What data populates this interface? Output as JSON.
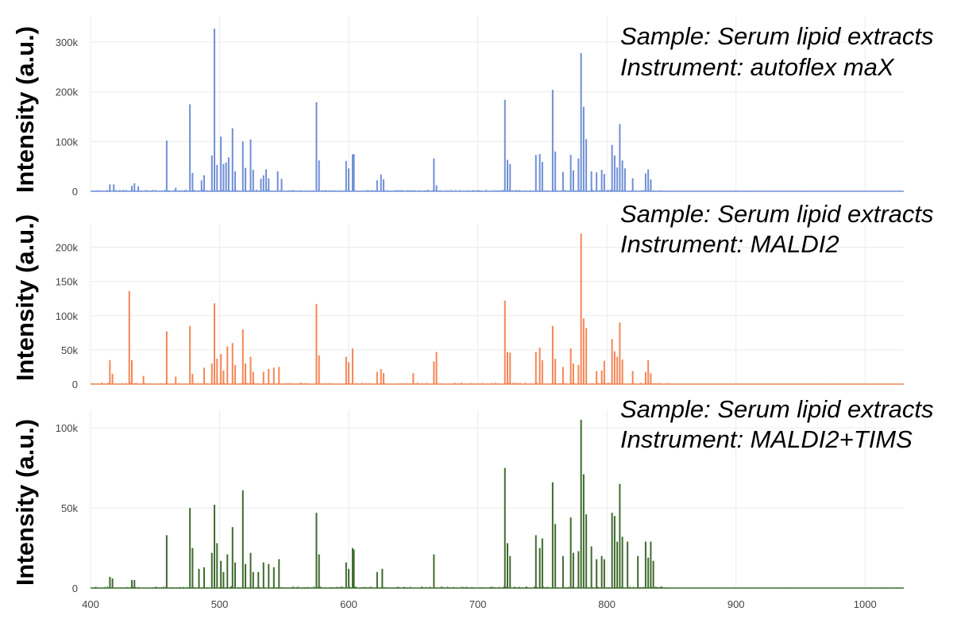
{
  "chart_data": [
    {
      "type": "bar",
      "ylabel": "Intensity (a.u.)",
      "annotation_lines": [
        "Sample: Serum lipid extracts",
        "Instrument: autoflex maX"
      ],
      "color": "#6f8fd6",
      "xlim": [
        400,
        1030
      ],
      "ylim": [
        0,
        340000
      ],
      "x_ticks": [
        400,
        500,
        600,
        700,
        800,
        900,
        1000
      ],
      "x_tick_labels": [
        "",
        "",
        "",
        "",
        "",
        "",
        ""
      ],
      "y_ticks": [
        0,
        100000,
        200000,
        300000
      ],
      "y_tick_labels": [
        "0",
        "100k",
        "200k",
        "300k"
      ],
      "grid": true,
      "x": [
        415,
        418,
        432,
        434,
        437,
        459,
        466,
        477,
        479,
        486,
        488,
        494,
        496,
        498,
        501,
        503,
        505,
        507,
        510,
        512,
        518,
        520,
        524,
        526,
        532,
        534,
        536,
        538,
        545,
        548,
        575,
        577,
        598,
        600,
        603,
        604,
        622,
        625,
        627,
        666,
        668,
        721,
        723,
        725,
        745,
        748,
        750,
        758,
        760,
        766,
        772,
        774,
        778,
        780,
        782,
        784,
        788,
        792,
        796,
        798,
        804,
        806,
        808,
        810,
        812,
        814,
        820,
        830,
        832,
        834
      ],
      "y": [
        14000,
        14000,
        11000,
        16000,
        10000,
        102000,
        7000,
        175000,
        37000,
        22000,
        32000,
        72000,
        327000,
        53000,
        110000,
        55000,
        58000,
        68000,
        127000,
        40000,
        100000,
        47000,
        104000,
        43000,
        25000,
        32000,
        44000,
        26000,
        40000,
        25000,
        179000,
        62000,
        61000,
        46000,
        74000,
        75000,
        22000,
        34000,
        24000,
        66000,
        12000,
        184000,
        63000,
        55000,
        73000,
        75000,
        59000,
        204000,
        80000,
        39000,
        73000,
        42000,
        66000,
        278000,
        170000,
        105000,
        40000,
        38000,
        43000,
        35000,
        93000,
        72000,
        48000,
        135000,
        62000,
        46000,
        26000,
        36000,
        44000,
        24000
      ]
    },
    {
      "type": "bar",
      "ylabel": "Intensity (a.u.)",
      "annotation_lines": [
        "Sample: Serum lipid extracts",
        "Instrument: MALDI2"
      ],
      "color": "#f48656",
      "xlim": [
        400,
        1030
      ],
      "ylim": [
        0,
        225000
      ],
      "x_ticks": [
        400,
        500,
        600,
        700,
        800,
        900,
        1000
      ],
      "x_tick_labels": [
        "",
        "",
        "",
        "",
        "",
        "",
        ""
      ],
      "y_ticks": [
        0,
        50000,
        100000,
        150000,
        200000
      ],
      "y_tick_labels": [
        "0",
        "50k",
        "100k",
        "150k",
        "200k"
      ],
      "grid": true,
      "x": [
        415,
        417,
        430,
        432,
        441,
        459,
        466,
        477,
        479,
        488,
        494,
        496,
        498,
        501,
        503,
        506,
        510,
        512,
        518,
        520,
        524,
        526,
        534,
        538,
        542,
        546,
        575,
        577,
        598,
        600,
        603,
        622,
        625,
        627,
        650,
        666,
        668,
        721,
        723,
        725,
        745,
        748,
        750,
        758,
        760,
        766,
        772,
        774,
        778,
        780,
        782,
        784,
        792,
        796,
        798,
        804,
        806,
        808,
        810,
        812,
        820,
        830,
        832,
        834
      ],
      "y": [
        35000,
        15000,
        136000,
        35000,
        12000,
        77000,
        11000,
        85000,
        15000,
        24000,
        30000,
        118000,
        37000,
        44000,
        20000,
        55000,
        60000,
        28000,
        80000,
        30000,
        40000,
        18000,
        18000,
        22000,
        24000,
        25000,
        117000,
        42000,
        40000,
        32000,
        52000,
        18000,
        22000,
        16000,
        16000,
        33000,
        47000,
        122000,
        47000,
        46000,
        47000,
        53000,
        35000,
        85000,
        37000,
        25000,
        52000,
        30000,
        28000,
        220000,
        96000,
        82000,
        19000,
        20000,
        34000,
        66000,
        48000,
        40000,
        90000,
        36000,
        19000,
        18000,
        35000,
        16000
      ]
    },
    {
      "type": "bar",
      "ylabel": "Intensity (a.u.)",
      "annotation_lines": [
        "Sample: Serum lipid extracts",
        "Instrument: MALDI2+TIMS"
      ],
      "color": "#3e6b2e",
      "xlim": [
        400,
        1030
      ],
      "ylim": [
        0,
        107000
      ],
      "x_ticks": [
        400,
        500,
        600,
        700,
        800,
        900,
        1000
      ],
      "x_tick_labels": [
        "400",
        "500",
        "600",
        "700",
        "800",
        "900",
        "1000"
      ],
      "y_ticks": [
        0,
        50000,
        100000
      ],
      "y_tick_labels": [
        "0",
        "50k",
        "100k"
      ],
      "grid": true,
      "x": [
        415,
        417,
        432,
        434,
        459,
        477,
        479,
        484,
        488,
        494,
        496,
        498,
        501,
        503,
        506,
        510,
        512,
        518,
        520,
        524,
        526,
        530,
        534,
        538,
        542,
        546,
        575,
        577,
        598,
        600,
        603,
        604,
        622,
        626,
        666,
        721,
        723,
        725,
        745,
        748,
        750,
        758,
        760,
        766,
        772,
        774,
        778,
        780,
        782,
        784,
        788,
        792,
        796,
        798,
        804,
        806,
        808,
        810,
        812,
        816,
        824,
        830,
        832,
        834,
        836
      ],
      "y": [
        7000,
        6000,
        5000,
        5000,
        33000,
        50000,
        25000,
        12000,
        13000,
        22000,
        52000,
        28000,
        17000,
        10000,
        21000,
        38000,
        16000,
        61000,
        15000,
        22000,
        10000,
        10000,
        16000,
        15000,
        13000,
        18000,
        47000,
        21000,
        16000,
        12000,
        25000,
        24000,
        10000,
        12000,
        21000,
        75000,
        28000,
        20000,
        33000,
        25000,
        31000,
        66000,
        40000,
        20000,
        44000,
        22000,
        23000,
        105000,
        71000,
        46000,
        26000,
        18000,
        20000,
        18000,
        47000,
        45000,
        29000,
        65000,
        32000,
        29000,
        20000,
        29000,
        19000,
        29000,
        17000
      ]
    }
  ]
}
